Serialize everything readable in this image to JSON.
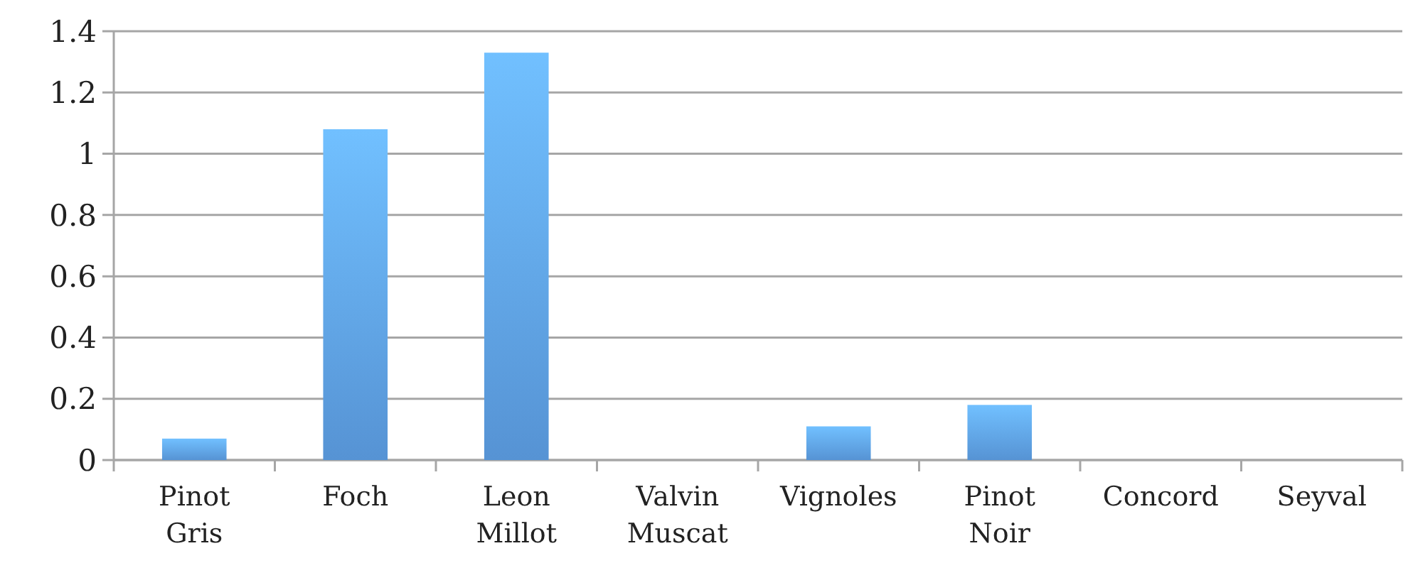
{
  "chart_data": {
    "type": "bar",
    "categories": [
      "Pinot Gris",
      "Foch",
      "Leon Millot",
      "Valvin Muscat",
      "Vignoles",
      "Pinot Noir",
      "Concord",
      "Seyval"
    ],
    "values": [
      0.07,
      1.08,
      1.33,
      0,
      0.11,
      0.18,
      0,
      0
    ],
    "color": "#5b9be0",
    "ylim": [
      0,
      1.4
    ],
    "yticks": [
      0,
      0.2,
      0.4,
      0.6,
      0.8,
      1,
      1.2,
      1.4
    ],
    "grid": "y"
  }
}
